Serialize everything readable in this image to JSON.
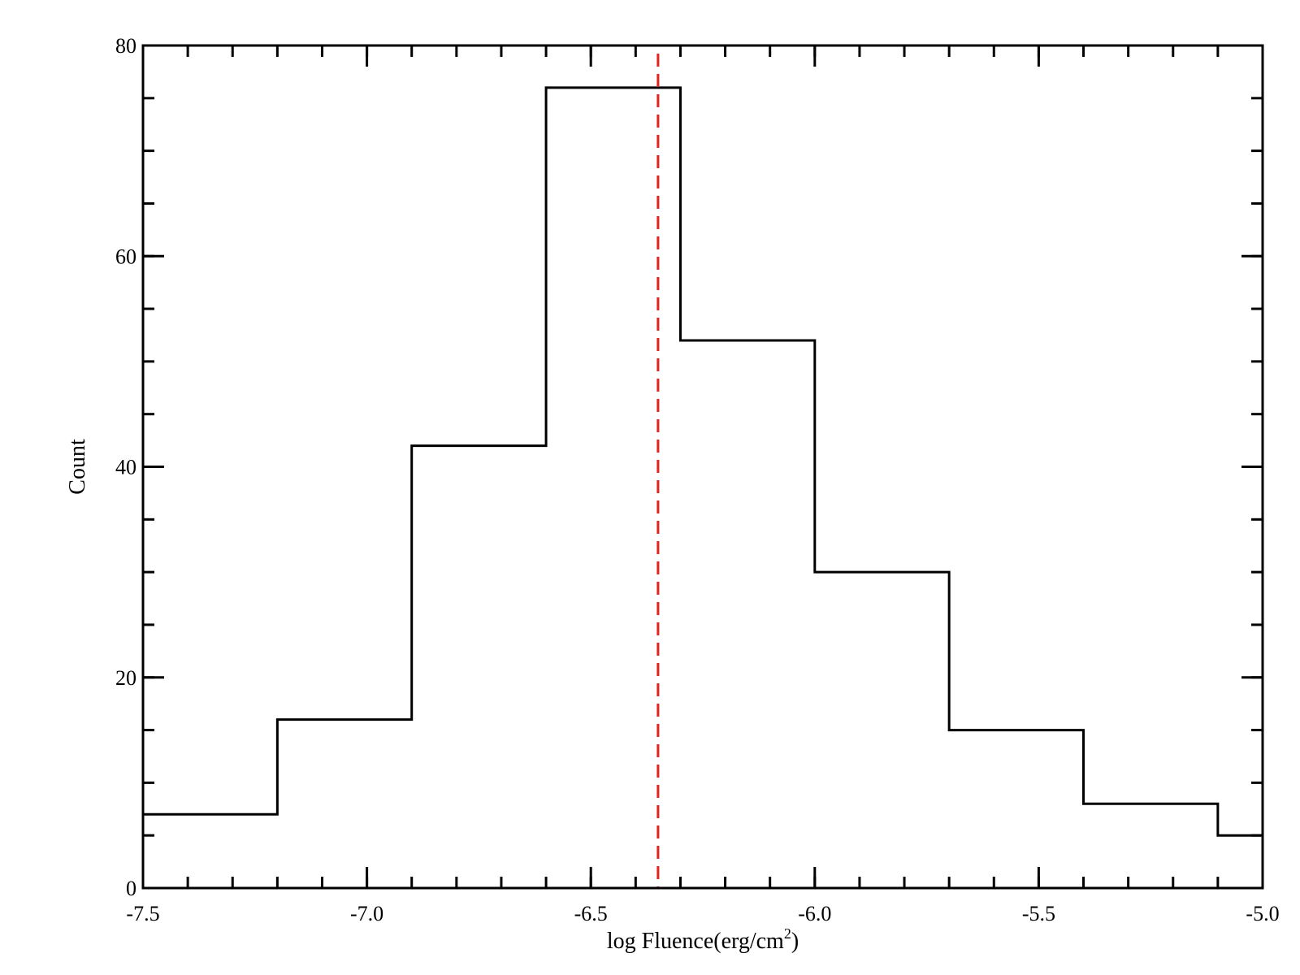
{
  "chart_data": {
    "type": "bar",
    "style": "step-histogram",
    "bin_edges": [
      -7.5,
      -7.2,
      -6.9,
      -6.6,
      -6.3,
      -6.0,
      -5.7,
      -5.4,
      -5.1,
      -5.0
    ],
    "values": [
      7,
      16,
      42,
      76,
      52,
      30,
      15,
      8,
      5
    ],
    "xlabel": "log Fluence(erg/cm",
    "xlabel_sup": "2",
    "xlabel_close": ")",
    "ylabel": "Count",
    "xlim": [
      -7.5,
      -5.0
    ],
    "ylim": [
      0,
      80
    ],
    "xticks": [
      -7.5,
      -7.0,
      -6.5,
      -6.0,
      -5.5,
      -5.0
    ],
    "xtick_labels": [
      "-7.5",
      "-7.0",
      "-6.5",
      "-6.0",
      "-5.5",
      "-5.0"
    ],
    "xminor_step": 0.1,
    "yticks": [
      0,
      20,
      40,
      60,
      80
    ],
    "ytick_labels": [
      "0",
      "20",
      "40",
      "60",
      "80"
    ],
    "yminor_step": 5,
    "reference_line": {
      "x": -6.35,
      "style": "dashed",
      "color": "#e8201e"
    },
    "line_color": "#000000",
    "grid": false,
    "legend": "none"
  }
}
